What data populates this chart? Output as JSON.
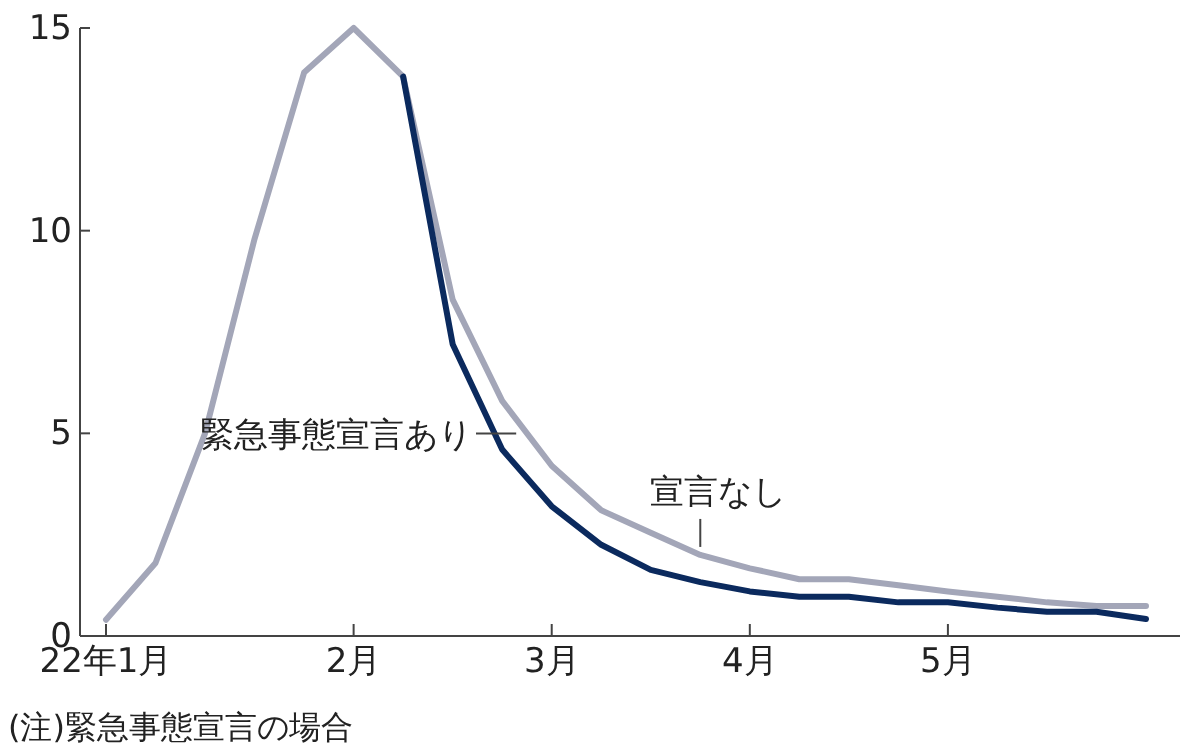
{
  "chart_data": {
    "type": "line",
    "categories": [
      "22年1月",
      null,
      null,
      null,
      null,
      "2月",
      null,
      null,
      null,
      "3月",
      null,
      null,
      null,
      "4月",
      null,
      null,
      null,
      "5月",
      null,
      null,
      null,
      null
    ],
    "ylim": [
      0,
      15
    ],
    "yticks": [
      0,
      5,
      10,
      15
    ],
    "grid": false,
    "marker": "none",
    "line_style": "solid",
    "series": [
      {
        "name": "宣言なし",
        "color": "#a3a6b8",
        "values": [
          0.4,
          1.8,
          5.0,
          9.8,
          13.9,
          15.0,
          13.8,
          8.3,
          5.8,
          4.2,
          3.1,
          2.55,
          2.0,
          1.67,
          1.4,
          1.4,
          1.25,
          1.1,
          0.97,
          0.83,
          0.74,
          0.74
        ]
      },
      {
        "name": "緊急事態宣言あり",
        "color": "#0b2a5e",
        "values": [
          null,
          null,
          null,
          null,
          null,
          null,
          13.8,
          7.2,
          4.6,
          3.2,
          2.25,
          1.63,
          1.33,
          1.1,
          0.97,
          0.97,
          0.83,
          0.83,
          0.7,
          0.6,
          0.6,
          0.42
        ]
      }
    ],
    "annotations": [
      "(注)緊急事態宣言の場合"
    ]
  }
}
